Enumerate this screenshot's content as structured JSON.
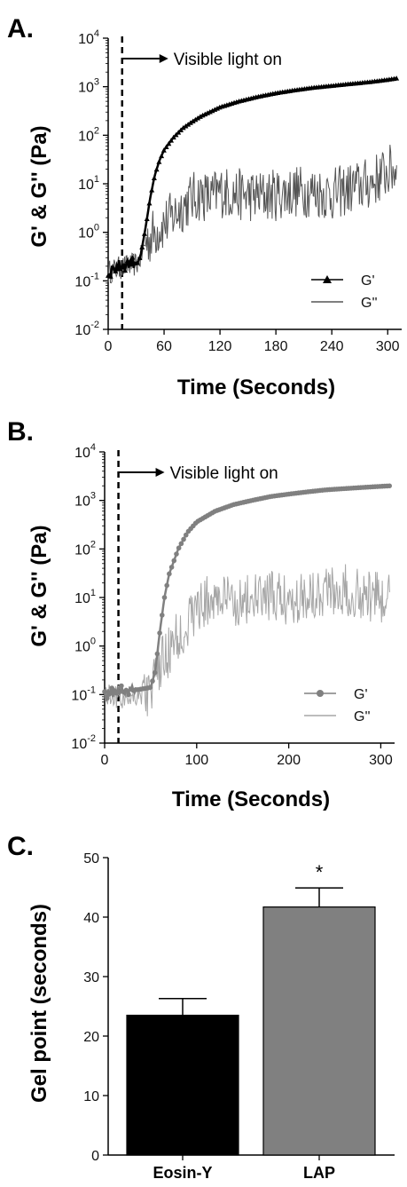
{
  "chart_data": [
    {
      "panel": "A.",
      "type": "line",
      "xlabel": "Time (Seconds)",
      "ylabel": "G' & G'' (Pa)",
      "yscale": "log",
      "xlim": [
        0,
        315
      ],
      "ylim": [
        0.01,
        10000
      ],
      "xticks": [
        0,
        60,
        120,
        180,
        240,
        300
      ],
      "yticks": [
        {
          "value": 0.01,
          "base": "10",
          "exp": "-2"
        },
        {
          "value": 0.1,
          "base": "10",
          "exp": "-1"
        },
        {
          "value": 1,
          "base": "10",
          "exp": "0"
        },
        {
          "value": 10,
          "base": "10",
          "exp": "1"
        },
        {
          "value": 100,
          "base": "10",
          "exp": "2"
        },
        {
          "value": 1000,
          "base": "10",
          "exp": "3"
        },
        {
          "value": 10000,
          "base": "10",
          "exp": "4"
        }
      ],
      "annotation": {
        "text": "Visible light on",
        "x": 15
      },
      "legend_position": "bottom-right",
      "series": [
        {
          "name": "G'",
          "marker": "triangle",
          "color": "#000000",
          "x": [
            0,
            10,
            20,
            30,
            35,
            40,
            45,
            50,
            55,
            60,
            70,
            80,
            90,
            100,
            120,
            140,
            160,
            180,
            200,
            220,
            240,
            260,
            280,
            300,
            310
          ],
          "y": [
            0.15,
            0.2,
            0.22,
            0.25,
            0.35,
            1.2,
            5,
            15,
            30,
            50,
            90,
            140,
            190,
            250,
            380,
            500,
            620,
            740,
            850,
            960,
            1050,
            1150,
            1250,
            1400,
            1500
          ]
        },
        {
          "name": "G''",
          "marker": "none",
          "color": "#555555",
          "x": [
            0,
            10,
            20,
            30,
            35,
            40,
            50,
            60,
            70,
            80,
            90,
            100,
            110,
            120,
            140,
            160,
            180,
            200,
            220,
            240,
            260,
            280,
            300,
            310
          ],
          "y": [
            0.15,
            0.18,
            0.2,
            0.22,
            0.3,
            0.6,
            1.0,
            1.5,
            2.2,
            3.5,
            5,
            6,
            5,
            7,
            6,
            5.5,
            6,
            7,
            7,
            6,
            8,
            10,
            18,
            20
          ]
        }
      ]
    },
    {
      "panel": "B.",
      "type": "line",
      "xlabel": "Time (Seconds)",
      "ylabel": "G' & G'' (Pa)",
      "yscale": "log",
      "xlim": [
        0,
        315
      ],
      "ylim": [
        0.01,
        10000
      ],
      "xticks": [
        0,
        100,
        200,
        300
      ],
      "yticks": [
        {
          "value": 0.01,
          "base": "10",
          "exp": "-2"
        },
        {
          "value": 0.1,
          "base": "10",
          "exp": "-1"
        },
        {
          "value": 1,
          "base": "10",
          "exp": "0"
        },
        {
          "value": 10,
          "base": "10",
          "exp": "1"
        },
        {
          "value": 100,
          "base": "10",
          "exp": "2"
        },
        {
          "value": 1000,
          "base": "10",
          "exp": "3"
        },
        {
          "value": 10000,
          "base": "10",
          "exp": "4"
        }
      ],
      "annotation": {
        "text": "Visible light on",
        "x": 15
      },
      "legend_position": "bottom-right",
      "series": [
        {
          "name": "G'",
          "marker": "circle",
          "color": "#808080",
          "x": [
            0,
            10,
            20,
            30,
            40,
            50,
            55,
            60,
            65,
            70,
            80,
            90,
            100,
            120,
            140,
            160,
            180,
            200,
            220,
            240,
            260,
            280,
            300,
            310
          ],
          "y": [
            0.1,
            0.12,
            0.13,
            0.12,
            0.13,
            0.14,
            0.3,
            2,
            10,
            30,
            100,
            220,
            360,
            600,
            820,
            1000,
            1200,
            1350,
            1500,
            1650,
            1750,
            1850,
            1950,
            2000
          ]
        },
        {
          "name": "G''",
          "marker": "none",
          "color": "#a6a6a6",
          "x": [
            0,
            10,
            20,
            30,
            40,
            50,
            55,
            60,
            70,
            80,
            90,
            100,
            110,
            120,
            140,
            160,
            180,
            200,
            220,
            240,
            260,
            280,
            300,
            310
          ],
          "y": [
            0.1,
            0.1,
            0.08,
            0.1,
            0.1,
            0.12,
            0.2,
            0.4,
            0.8,
            1.5,
            3,
            6,
            8,
            10,
            8,
            9,
            10,
            9,
            12,
            15,
            14,
            12,
            10,
            9
          ]
        }
      ]
    },
    {
      "panel": "C.",
      "type": "bar",
      "ylabel": "Gel point (seconds)",
      "ylim": [
        0,
        50
      ],
      "yticks": [
        0,
        10,
        20,
        30,
        40,
        50
      ],
      "categories": [
        "Eosin-Y",
        "LAP"
      ],
      "values": [
        23.5,
        41.7
      ],
      "errors": [
        2.8,
        3.2
      ],
      "colors": [
        "#000000",
        "#808080"
      ],
      "significance": [
        "",
        "*"
      ]
    }
  ]
}
